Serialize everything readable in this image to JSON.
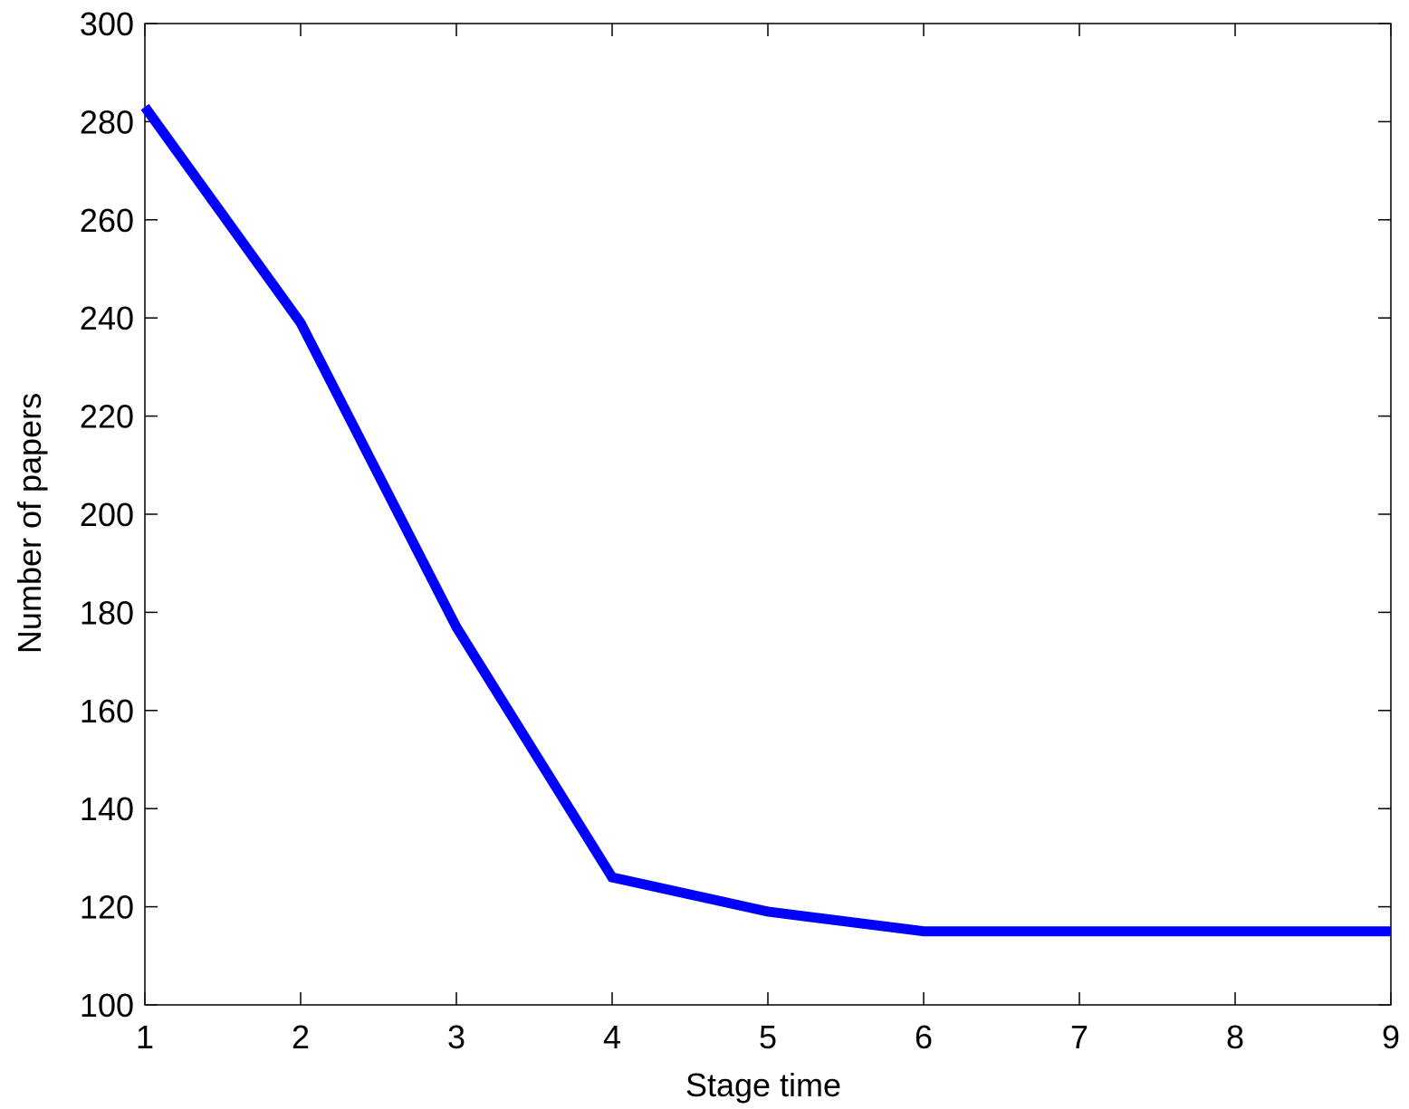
{
  "chart_data": {
    "type": "line",
    "title": "",
    "xlabel": "Stage time",
    "ylabel": "Number of papers",
    "xlim": [
      1,
      9
    ],
    "ylim": [
      100,
      300
    ],
    "x_ticks": [
      1,
      2,
      3,
      4,
      5,
      6,
      7,
      8,
      9
    ],
    "y_ticks": [
      100,
      120,
      140,
      160,
      180,
      200,
      220,
      240,
      260,
      280,
      300
    ],
    "grid": false,
    "box": true,
    "series": [
      {
        "color": "#0000ff",
        "x": [
          1,
          2,
          3,
          4,
          5,
          6,
          7,
          8,
          9
        ],
        "y": [
          283,
          239,
          177,
          126,
          119,
          115,
          115,
          115,
          115
        ]
      }
    ]
  }
}
